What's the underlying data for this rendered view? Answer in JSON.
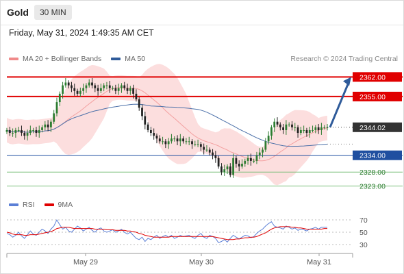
{
  "header": {
    "title": "Gold",
    "timeframe": "30 MIN"
  },
  "datetime": "Friday, May 31, 2024 1:49:35 AM CET",
  "legend_main": [
    {
      "label": "MA 20 + Bollinger Bands",
      "color": "#f08a8a"
    },
    {
      "label": "MA 50",
      "color": "#2f5b9a"
    }
  ],
  "legend_rsi": [
    {
      "label": "RSI",
      "color": "#5b7fd6"
    },
    {
      "label": "9MA",
      "color": "#e00000"
    }
  ],
  "credit": "Research © 2024 Trading Central",
  "colors": {
    "bull": "#2e7d32",
    "bear": "#222222",
    "resistance": "#e00000",
    "support_strong": "#1f4fa0",
    "support": "#7bbf7b",
    "bollinger_fill": "#fbd8d8",
    "arrow": "#2f5b9a",
    "current": "#333333"
  },
  "chart_data": [
    {
      "type": "candlestick",
      "ylim": [
        2319,
        2366
      ],
      "x_ticks": [
        "May 29",
        "May 30",
        "May 31"
      ],
      "current_price": "2344.02",
      "levels": [
        {
          "label": "2362.00",
          "value": 2362.0,
          "style": "resistance"
        },
        {
          "label": "2355.00",
          "value": 2355.0,
          "style": "resistance"
        },
        {
          "label": "2334.00",
          "value": 2334.0,
          "style": "support_strong"
        },
        {
          "label": "2328.00",
          "value": 2328.0,
          "style": "support"
        },
        {
          "label": "2323.00",
          "value": 2323.0,
          "style": "support"
        }
      ],
      "close_series": [
        2343,
        2342,
        2342,
        2343,
        2343,
        2342,
        2341,
        2342,
        2343,
        2343,
        2342,
        2343,
        2344,
        2345,
        2344,
        2346,
        2349,
        2353,
        2356,
        2359,
        2360,
        2359,
        2358,
        2357,
        2356,
        2357,
        2358,
        2359,
        2360,
        2359,
        2358,
        2357,
        2358,
        2359,
        2359,
        2358,
        2358,
        2357,
        2358,
        2359,
        2358,
        2357,
        2358,
        2356,
        2354,
        2351,
        2348,
        2345,
        2343,
        2342,
        2341,
        2340,
        2339,
        2339,
        2338,
        2339,
        2340,
        2340,
        2339,
        2340,
        2339,
        2339,
        2339,
        2338,
        2338,
        2338,
        2337,
        2336,
        2336,
        2335,
        2334,
        2333,
        2330,
        2328,
        2329,
        2330,
        2327,
        2333,
        2331,
        2330,
        2331,
        2332,
        2333,
        2332,
        2332,
        2334,
        2335,
        2336,
        2339,
        2341,
        2344,
        2346,
        2345,
        2344,
        2343,
        2345,
        2345,
        2344,
        2344,
        2342,
        2343,
        2343,
        2342,
        2343,
        2343,
        2344,
        2343,
        2344,
        2344,
        2344
      ],
      "projection": {
        "from": 2344.02,
        "to": 2362.0
      }
    },
    {
      "type": "line",
      "series": [
        {
          "name": "RSI",
          "values": [
            48,
            46,
            42,
            45,
            50,
            44,
            40,
            46,
            52,
            47,
            45,
            50,
            55,
            52,
            48,
            55,
            60,
            70,
            62,
            55,
            58,
            52,
            50,
            55,
            60,
            57,
            52,
            55,
            58,
            53,
            50,
            55,
            57,
            52,
            50,
            52,
            54,
            50,
            52,
            55,
            50,
            47,
            50,
            45,
            40,
            38,
            42,
            35,
            40,
            38,
            42,
            45,
            40,
            43,
            45,
            42,
            45,
            40,
            42,
            45,
            43,
            44,
            45,
            42,
            40,
            45,
            48,
            42,
            40,
            45,
            43,
            40,
            33,
            35,
            38,
            34,
            40,
            45,
            42,
            39,
            42,
            45,
            44,
            41,
            43,
            48,
            52,
            55,
            60,
            64,
            67,
            60,
            58,
            57,
            55,
            60,
            58,
            55,
            57,
            53,
            55,
            54,
            52,
            55,
            56,
            58,
            55,
            58,
            58,
            58
          ]
        },
        {
          "name": "9MA",
          "values": [
            50,
            49,
            47,
            46,
            46,
            46,
            45,
            45,
            46,
            46,
            46,
            47,
            48,
            49,
            50,
            51,
            53,
            56,
            57,
            58,
            58,
            58,
            57,
            56,
            56,
            56,
            56,
            56,
            56,
            56,
            55,
            55,
            55,
            55,
            54,
            54,
            54,
            53,
            53,
            53,
            53,
            52,
            52,
            51,
            50,
            48,
            47,
            45,
            44,
            43,
            42,
            42,
            42,
            42,
            42,
            42,
            43,
            43,
            43,
            43,
            43,
            43,
            43,
            43,
            43,
            43,
            43,
            43,
            43,
            43,
            43,
            42,
            41,
            40,
            39,
            38,
            38,
            38,
            39,
            39,
            40,
            41,
            41,
            42,
            42,
            43,
            45,
            47,
            49,
            52,
            55,
            57,
            58,
            59,
            59,
            59,
            59,
            58,
            58,
            57,
            57,
            56,
            55,
            55,
            55,
            55,
            55,
            55,
            56,
            56
          ]
        }
      ],
      "y_ticks": [
        "70",
        "50",
        "30"
      ],
      "y_values": [
        70,
        50,
        30
      ]
    }
  ]
}
